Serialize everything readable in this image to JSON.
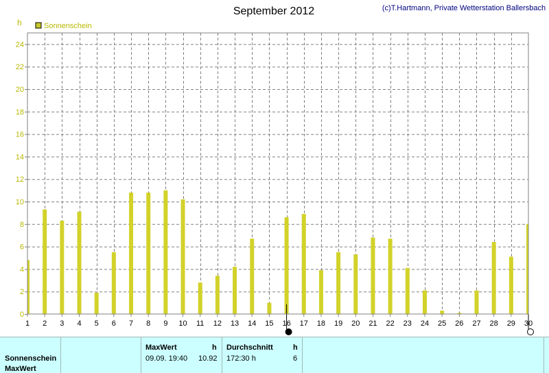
{
  "chart": {
    "title": "September 2012",
    "credit": "(c)T.Hartmann, Private Wetterstation Ballersbach",
    "y_unit": "h",
    "colors": {
      "bar": "#d2d22a",
      "legend_swatch": "#c8c82a",
      "axis_text": "#b8b800",
      "grid": "#808080"
    }
  },
  "chart_data": {
    "type": "bar",
    "series": [
      {
        "name": "Sonnenschein",
        "x": [
          1,
          2,
          3,
          4,
          5,
          6,
          7,
          8,
          9,
          10,
          11,
          12,
          13,
          14,
          15,
          16,
          17,
          18,
          19,
          20,
          21,
          22,
          23,
          24,
          25,
          26,
          27,
          28,
          29,
          30
        ],
        "values": [
          4.8,
          9.3,
          8.3,
          9.1,
          1.9,
          5.5,
          10.8,
          10.8,
          11.0,
          10.2,
          2.8,
          3.4,
          4.2,
          6.7,
          1.0,
          8.6,
          8.9,
          3.9,
          5.5,
          5.3,
          6.8,
          6.7,
          4.1,
          2.1,
          0.3,
          0.1,
          2.1,
          6.4,
          5.1,
          8.0
        ]
      }
    ],
    "xlim": [
      1,
      30
    ],
    "ylim": [
      0,
      25
    ],
    "yticks": [
      0,
      2,
      4,
      6,
      8,
      10,
      12,
      14,
      16,
      18,
      20,
      22,
      24
    ],
    "xticks": [
      1,
      2,
      3,
      4,
      5,
      6,
      7,
      8,
      9,
      10,
      11,
      12,
      13,
      14,
      15,
      16,
      17,
      18,
      19,
      20,
      21,
      22,
      23,
      24,
      25,
      26,
      27,
      28,
      29,
      30
    ],
    "grid": true,
    "legend": "top-left",
    "moon_phases": [
      {
        "day": 16,
        "phase": "new-moon"
      },
      {
        "day": 30,
        "phase": "full-moon"
      }
    ]
  },
  "stats": {
    "row_labels": [
      "Sonnenschein",
      "MaxWert"
    ],
    "max_header": "MaxWert",
    "max_unit": "h",
    "max_time": "09.09.  19:40",
    "max_value": "10.92",
    "avg_header": "Durchschnitt",
    "avg_unit": "h",
    "avg_total": "172:30 h",
    "avg_value": "6"
  }
}
